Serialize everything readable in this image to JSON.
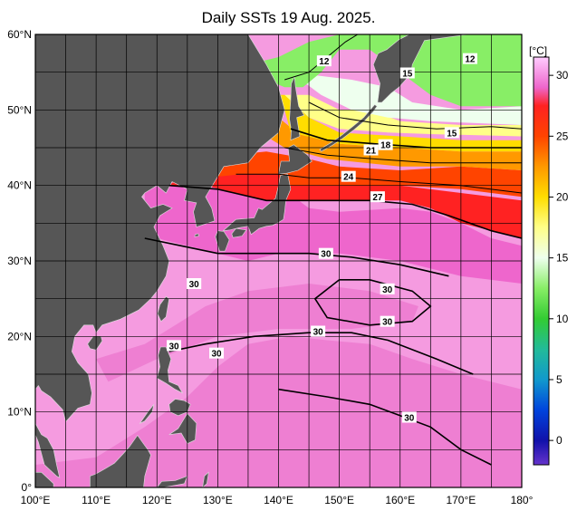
{
  "title": "Daily SSTs 19 Aug. 2025.",
  "colors": {
    "land": "#565656",
    "grid": "#000000",
    "frame": "#000000",
    "ocean_warm": "#f59be0",
    "ocean_hot": "#ee7fd2"
  },
  "axes": {
    "lat_labels": [
      "0°",
      "10°N",
      "20°N",
      "30°N",
      "40°N",
      "50°N",
      "60°N"
    ],
    "lon_labels": [
      "100°E",
      "110°E",
      "120°E",
      "130°E",
      "140°E",
      "150°E",
      "160°E",
      "170°E",
      "180°"
    ],
    "lat_range": [
      0,
      60
    ],
    "lon_range": [
      100,
      180
    ]
  },
  "colorbar": {
    "unit": "[°C]",
    "ticks": [
      "30",
      "25",
      "20",
      "15",
      "10",
      "5",
      "0"
    ],
    "stops": [
      {
        "t": 31.5,
        "c": "#ffccff"
      },
      {
        "t": 29,
        "c": "#ee66cc"
      },
      {
        "t": 27.5,
        "c": "#ff2222"
      },
      {
        "t": 25,
        "c": "#ff4400"
      },
      {
        "t": 22.5,
        "c": "#ff9900"
      },
      {
        "t": 20,
        "c": "#ffdd00"
      },
      {
        "t": 17.5,
        "c": "#ffff88"
      },
      {
        "t": 15,
        "c": "#eeffee"
      },
      {
        "t": 12.5,
        "c": "#88ee66"
      },
      {
        "t": 10,
        "c": "#33cc33"
      },
      {
        "t": 7.5,
        "c": "#22bb99"
      },
      {
        "t": 5,
        "c": "#1199cc"
      },
      {
        "t": 2.5,
        "c": "#0044dd"
      },
      {
        "t": 0,
        "c": "#1111aa"
      },
      {
        "t": -2,
        "c": "#6633cc"
      }
    ]
  },
  "contour_labels": [
    {
      "text": "12",
      "lon": 147.5,
      "lat": 56.5
    },
    {
      "text": "12",
      "lon": 171.5,
      "lat": 56.8
    },
    {
      "text": "15",
      "lon": 161.2,
      "lat": 54.9
    },
    {
      "text": "15",
      "lon": 168.5,
      "lat": 47.0
    },
    {
      "text": "18",
      "lon": 157.6,
      "lat": 45.4
    },
    {
      "text": "21",
      "lon": 155.2,
      "lat": 44.7
    },
    {
      "text": "24",
      "lon": 151.5,
      "lat": 41.2
    },
    {
      "text": "27",
      "lon": 156.3,
      "lat": 38.5
    },
    {
      "text": "30",
      "lon": 147.8,
      "lat": 31.0
    },
    {
      "text": "30",
      "lon": 126.1,
      "lat": 27.0
    },
    {
      "text": "30",
      "lon": 157.9,
      "lat": 26.3
    },
    {
      "text": "30",
      "lon": 157.9,
      "lat": 22.0
    },
    {
      "text": "30",
      "lon": 146.5,
      "lat": 20.7
    },
    {
      "text": "30",
      "lon": 122.8,
      "lat": 18.8
    },
    {
      "text": "30",
      "lon": 129.8,
      "lat": 17.8
    },
    {
      "text": "30",
      "lon": 161.5,
      "lat": 9.3
    }
  ]
}
